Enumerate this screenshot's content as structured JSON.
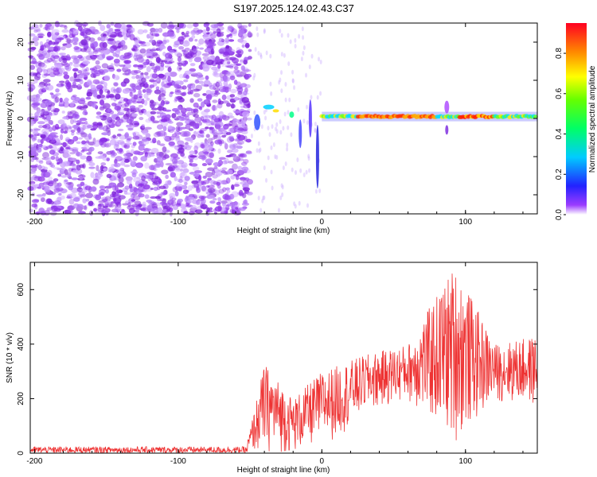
{
  "title": "S197.2025.124.02.43.C37",
  "chart_data": [
    {
      "type": "heatmap",
      "name": "spectrogram",
      "xlabel": "Height of straight line (km)",
      "ylabel": "Frequency (Hz)",
      "xlim": [
        -203,
        150
      ],
      "ylim": [
        -25,
        25
      ],
      "xticks": [
        -200,
        -100,
        0,
        100
      ],
      "yticks": [
        -20,
        -10,
        0,
        10,
        20
      ],
      "colorbar": {
        "label": "Normalized spectral amplitude",
        "range": [
          0.0,
          0.95
        ],
        "ticks": [
          0.0,
          0.2,
          0.4,
          0.6,
          0.8
        ]
      },
      "regions": [
        {
          "x": [
            -203,
            -50
          ],
          "description": "broadband noise, low amplitude (~0.0-0.2)"
        },
        {
          "x": [
            -50,
            0
          ],
          "description": "scattered features near 0 Hz with vertical streaks to -20 Hz"
        },
        {
          "x": [
            0,
            150
          ],
          "description": "continuous narrow band near 0-1 Hz, amplitude 0.5-0.95"
        }
      ]
    },
    {
      "type": "line",
      "name": "snr",
      "xlabel": "Height of straight line (km)",
      "ylabel": "SNR (10 * v/v)",
      "xlim": [
        -203,
        150
      ],
      "ylim": [
        0,
        700
      ],
      "xticks": [
        -200,
        -100,
        0,
        100
      ],
      "yticks": [
        0,
        200,
        400,
        600
      ],
      "color": "#ee3333",
      "envelope": [
        {
          "x": -203,
          "low": 0,
          "high": 40
        },
        {
          "x": -52,
          "low": 0,
          "high": 40
        },
        {
          "x": -40,
          "low": 0,
          "high": 330
        },
        {
          "x": -20,
          "low": 0,
          "high": 200
        },
        {
          "x": 0,
          "low": 40,
          "high": 300
        },
        {
          "x": 10,
          "low": 50,
          "high": 320
        },
        {
          "x": 30,
          "low": 150,
          "high": 360
        },
        {
          "x": 60,
          "low": 190,
          "high": 400
        },
        {
          "x": 91,
          "low": 40,
          "high": 680
        },
        {
          "x": 94,
          "low": 40,
          "high": 680
        },
        {
          "x": 120,
          "low": 190,
          "high": 400
        },
        {
          "x": 150,
          "low": 170,
          "high": 430
        }
      ]
    }
  ]
}
